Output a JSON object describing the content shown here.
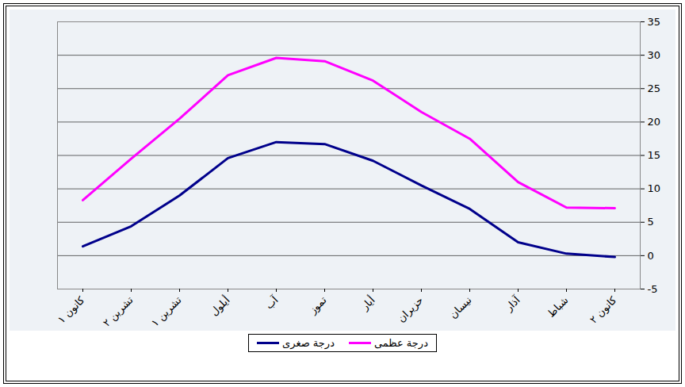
{
  "chart_data": {
    "type": "line",
    "categories": [
      "كانون ١",
      "تشرين ٢",
      "تشرين ١",
      "أيلول",
      "آب",
      "تموز",
      "أيار",
      "حزيران",
      "نيسان",
      "آذار",
      "شباط",
      "كانون ٢"
    ],
    "series": [
      {
        "name": "درجة عظمى",
        "color": "#ff00ff",
        "values": [
          8.3,
          14.5,
          20.5,
          27,
          29.6,
          29.1,
          26.2,
          21.5,
          17.5,
          11,
          7.2,
          7.1
        ]
      },
      {
        "name": "درجة صغرى",
        "color": "#00008b",
        "values": [
          1.4,
          4.4,
          9,
          14.6,
          17,
          16.7,
          14.2,
          10.5,
          7,
          2,
          0.3,
          -0.2
        ]
      }
    ],
    "ylim": [
      -5,
      35
    ],
    "yticks": [
      -5,
      0,
      5,
      10,
      15,
      20,
      25,
      30,
      35
    ],
    "grid": true,
    "legend": "bottom"
  }
}
